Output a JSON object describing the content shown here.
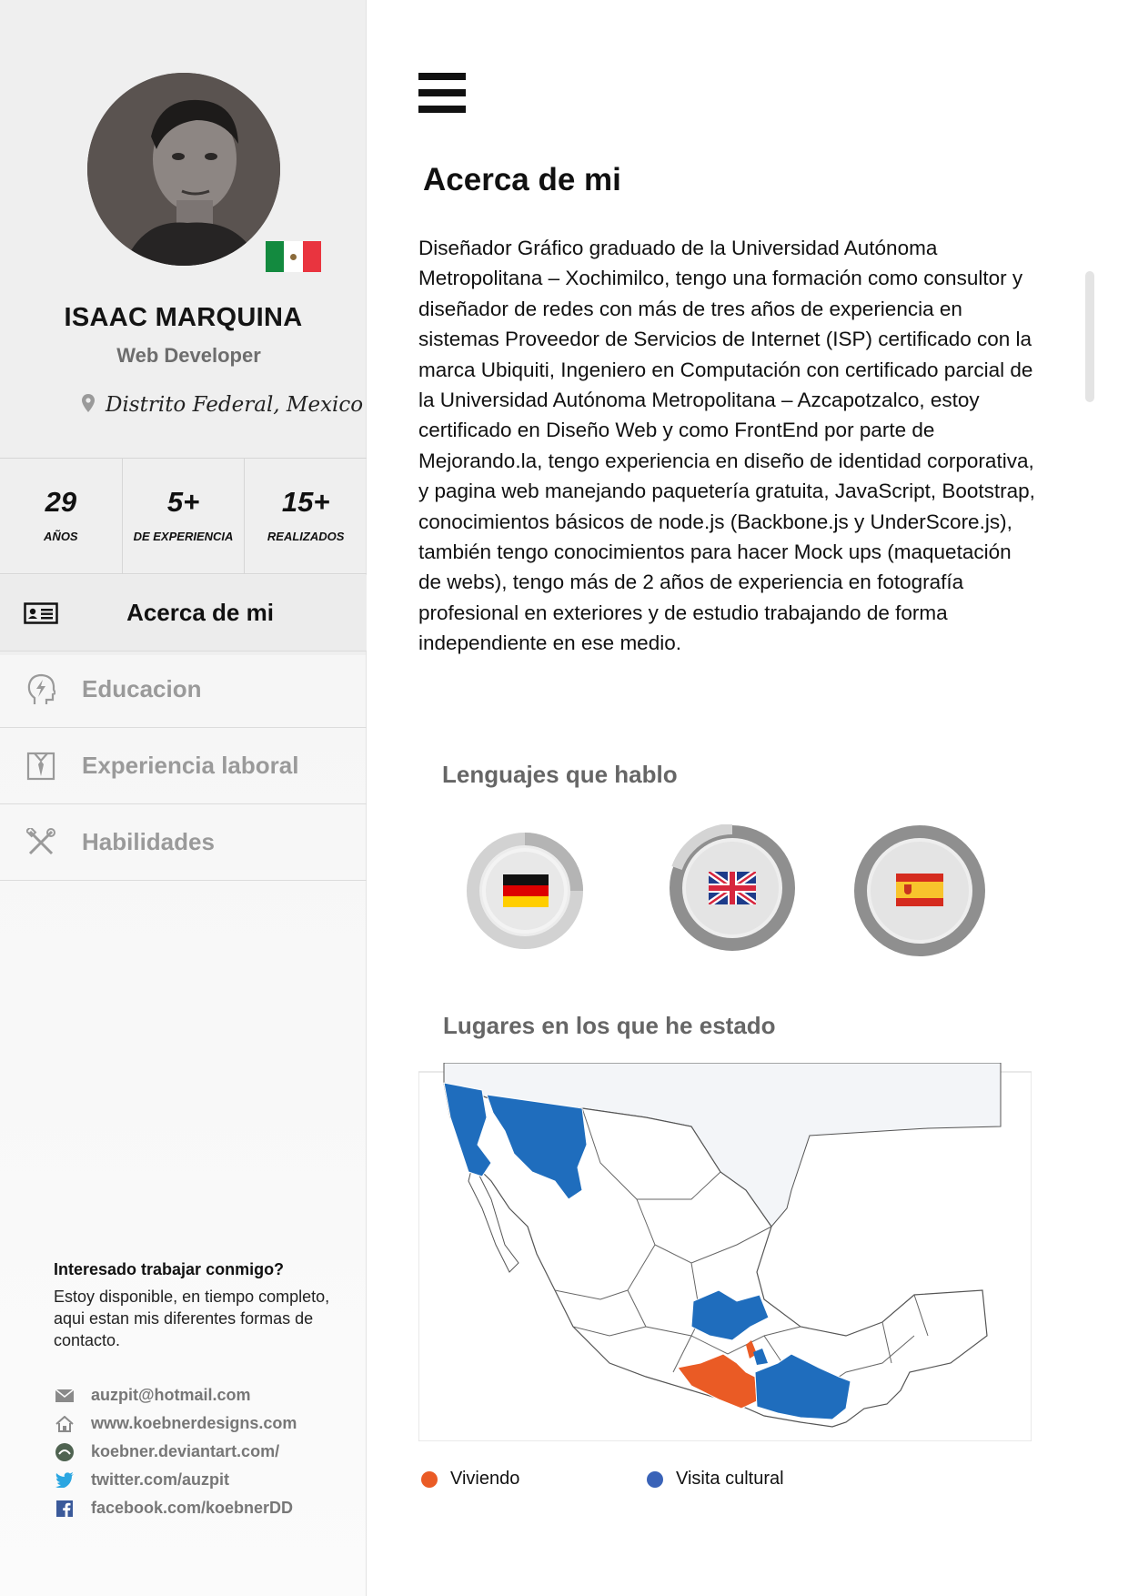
{
  "colors": {
    "sidebar_bg": "#efefef",
    "accent_living": "#ea5b25",
    "accent_visit": "#1f6dbd",
    "muted_text": "#9a9a9a"
  },
  "profile": {
    "name": "ISAAC MARQUINA",
    "role": "Web Developer",
    "location": "Distrito Federal, Mexico",
    "flag": "mexico-flag-icon"
  },
  "stats": [
    {
      "value": "29",
      "label": "AÑOS"
    },
    {
      "value": "5+",
      "label": "DE EXPERIENCIA"
    },
    {
      "value": "15+",
      "label": "REALIZADOS"
    }
  ],
  "nav": [
    {
      "label": "Acerca de mi",
      "icon": "id-card-icon",
      "active": true
    },
    {
      "label": "Educacion",
      "icon": "head-lightning-icon",
      "active": false
    },
    {
      "label": "Experiencia laboral",
      "icon": "shirt-tie-icon",
      "active": false
    },
    {
      "label": "Habilidades",
      "icon": "tools-icon",
      "active": false
    }
  ],
  "contact": {
    "title": "Interesado trabajar conmigo?",
    "text": "Estoy disponible, en tiempo completo, aqui estan mis diferentes formas de contacto.",
    "items": [
      {
        "icon": "mail-icon",
        "text": "auzpit@hotmail.com"
      },
      {
        "icon": "home-icon",
        "text": "www.koebnerdesigns.com"
      },
      {
        "icon": "deviantart-icon",
        "text": "koebner.deviantart.com/"
      },
      {
        "icon": "twitter-icon",
        "text": "twitter.com/auzpit"
      },
      {
        "icon": "facebook-icon",
        "text": "facebook.com/koebnerDD"
      }
    ]
  },
  "about": {
    "title": "Acerca de mi",
    "text": "Diseñador Gráfico graduado de la Universidad Autónoma Metropolitana – Xochimilco, tengo una formación como consultor y diseñador de redes con más de tres años de experiencia en sistemas Proveedor de Servicios de Internet (ISP) certificado con la marca Ubiquiti, Ingeniero en Computación con certificado parcial de la Universidad Autónoma Metropolitana – Azcapotzalco, estoy certificado en Diseño Web y como FrontEnd por parte de Mejorando.la, tengo experiencia en diseño de identidad corporativa, y pagina web manejando paquetería gratuita, JavaScript, Bootstrap, conocimientos básicos de node.js (Backbone.js y UnderScore.js), también tengo conocimientos para hacer Mock ups (maquetación de webs), tengo más de 2 años de experiencia en fotografía profesional en exteriores y de estudio trabajando de forma independiente en ese medio."
  },
  "languages": {
    "title": "Lenguajes que hablo",
    "items": [
      {
        "flag": "germany-flag-icon",
        "level": 0.3
      },
      {
        "flag": "uk-flag-icon",
        "level": 0.85
      },
      {
        "flag": "spain-flag-icon",
        "level": 1.0
      }
    ]
  },
  "places": {
    "title": "Lugares en los que he estado",
    "legend": [
      {
        "label": "Viviendo",
        "color": "#ea5b25"
      },
      {
        "label": "Visita cultural",
        "color": "#3a63b8"
      }
    ]
  }
}
